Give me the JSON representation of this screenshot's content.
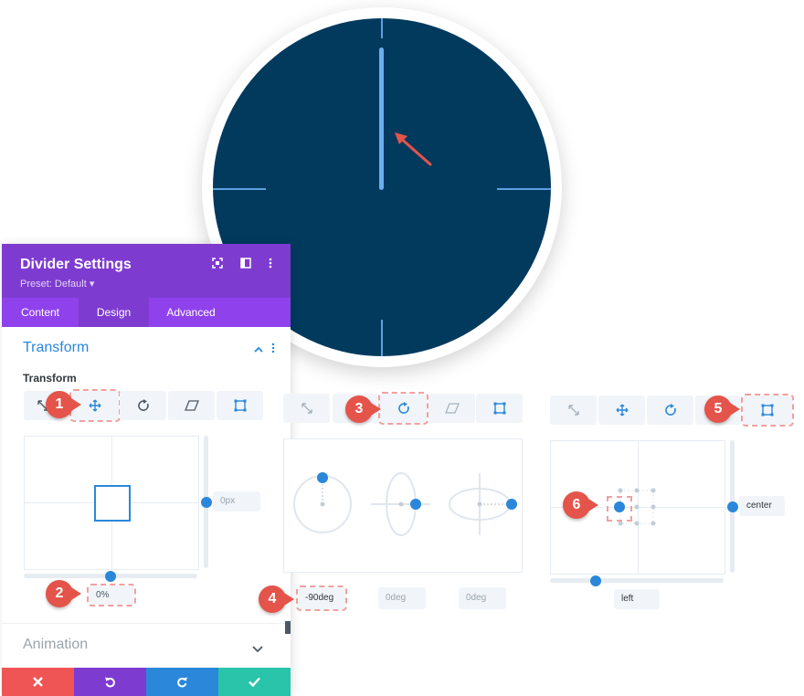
{
  "panel": {
    "title": "Divider Settings",
    "preset": "Preset: Default",
    "tabs": [
      "Content",
      "Design",
      "Advanced"
    ],
    "active_tab": "Design",
    "section_title": "Transform",
    "sub_label": "Transform",
    "collapsed_section": "Animation"
  },
  "transform_translate": {
    "y_value": "0px",
    "x_value": "0%"
  },
  "transform_rotate": {
    "values": [
      "-90deg",
      "0deg",
      "0deg"
    ]
  },
  "transform_origin": {
    "vertical_value": "center",
    "horizontal_value": "left"
  },
  "badges": [
    "1",
    "2",
    "3",
    "4",
    "5",
    "6"
  ],
  "colors": {
    "purple_header": "#7e3bd0",
    "purple_tabs": "#8f42ec",
    "accent_blue": "#2b87da",
    "badge_red": "#e4544a",
    "clock_face": "#023a5e",
    "clock_ticks": "#5e9fe0",
    "cancel": "#ef5555",
    "undo": "#7e3bd0",
    "redo": "#2b87da",
    "save": "#29c4a9"
  },
  "icons": [
    "expand-icon",
    "panel-toggle-icon",
    "more-options-icon",
    "chevron-up-icon",
    "scale-icon",
    "move-icon",
    "rotate-icon",
    "skew-icon",
    "origin-icon",
    "chevron-down-icon",
    "close-icon",
    "undo-icon",
    "redo-icon",
    "check-icon"
  ]
}
